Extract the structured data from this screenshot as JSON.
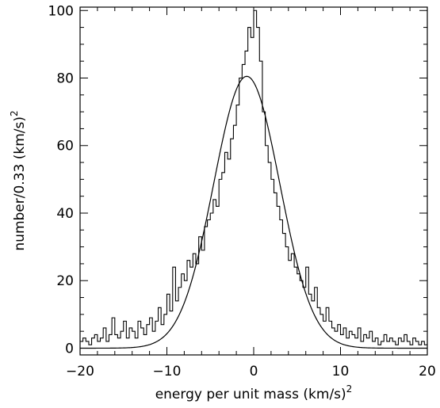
{
  "chart_data": {
    "type": "histogram",
    "xlabel": "energy per unit mass (km/s)",
    "xlabel_sup": "2",
    "ylabel": "number/0.33 (km/s)",
    "ylabel_sup": "2",
    "xlim": [
      -20,
      20
    ],
    "ylim": [
      -2,
      101
    ],
    "grid": false,
    "x_major_ticks": [
      -20,
      -10,
      0,
      10,
      20
    ],
    "x_tick_labels": [
      "−20",
      "−10",
      "0",
      "10",
      "20"
    ],
    "y_major_ticks": [
      0,
      20,
      40,
      60,
      80,
      100
    ],
    "y_tick_labels": [
      "0",
      "20",
      "40",
      "60",
      "80",
      "100"
    ],
    "bin_width": 0.33,
    "series": [
      {
        "type": "step",
        "x": [
          -20,
          -19.67,
          -19.33,
          -19,
          -18.67,
          -18.33,
          -18,
          -17.67,
          -17.33,
          -17,
          -16.67,
          -16.33,
          -16,
          -15.67,
          -15.33,
          -15,
          -14.67,
          -14.33,
          -14,
          -13.67,
          -13.33,
          -13,
          -12.67,
          -12.33,
          -12,
          -11.67,
          -11.33,
          -11,
          -10.67,
          -10.33,
          -10,
          -9.67,
          -9.33,
          -9,
          -8.67,
          -8.33,
          -8,
          -7.67,
          -7.33,
          -7,
          -6.67,
          -6.33,
          -6,
          -5.67,
          -5.33,
          -5,
          -4.67,
          -4.33,
          -4,
          -3.67,
          -3.33,
          -3,
          -2.67,
          -2.33,
          -2,
          -1.67,
          -1.33,
          -1,
          -0.67,
          -0.33,
          0,
          0.33,
          0.67,
          1,
          1.33,
          1.67,
          2,
          2.33,
          2.67,
          3,
          3.33,
          3.67,
          4,
          4.33,
          4.67,
          5,
          5.33,
          5.67,
          6,
          6.33,
          6.67,
          7,
          7.33,
          7.67,
          8,
          8.33,
          8.67,
          9,
          9.33,
          9.67,
          10,
          10.33,
          10.67,
          11,
          11.33,
          11.67,
          12,
          12.33,
          12.67,
          13,
          13.33,
          13.67,
          14,
          14.33,
          14.67,
          15,
          15.33,
          15.67,
          16,
          16.33,
          16.67,
          17,
          17.33,
          17.67,
          18,
          18.33,
          18.67,
          19,
          19.33,
          19.67
        ],
        "y": [
          2,
          3,
          2,
          1,
          3,
          4,
          2,
          3,
          6,
          2,
          4,
          9,
          4,
          3,
          5,
          8,
          3,
          6,
          5,
          3,
          8,
          6,
          4,
          7,
          9,
          5,
          8,
          12,
          7,
          10,
          16,
          11,
          24,
          14,
          18,
          22,
          20,
          26,
          24,
          28,
          25,
          33,
          29,
          36,
          38,
          40,
          44,
          42,
          50,
          52,
          58,
          56,
          62,
          66,
          72,
          80,
          84,
          88,
          95,
          92,
          100,
          95,
          85,
          70,
          60,
          55,
          50,
          46,
          42,
          38,
          34,
          30,
          26,
          28,
          24,
          22,
          20,
          18,
          24,
          16,
          14,
          18,
          12,
          10,
          8,
          12,
          8,
          6,
          5,
          7,
          4,
          6,
          3,
          5,
          4,
          3,
          6,
          2,
          4,
          3,
          5,
          2,
          3,
          1,
          2,
          4,
          2,
          3,
          2,
          1,
          3,
          2,
          4,
          2,
          1,
          3,
          2,
          1,
          2,
          1
        ]
      },
      {
        "type": "line",
        "mean": -0.8,
        "sigma": 3.8,
        "amplitude": 80.5
      }
    ]
  }
}
